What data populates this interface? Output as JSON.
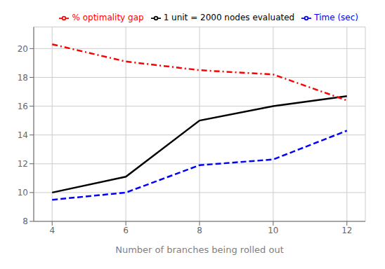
{
  "chart_data": {
    "type": "line",
    "x": [
      4,
      6,
      8,
      10,
      12
    ],
    "series": [
      {
        "name": "1 unit = 2000 nodes evaluated",
        "color": "#000000",
        "line_style": "solid",
        "values": [
          10.0,
          11.1,
          15.0,
          16.0,
          16.7
        ]
      },
      {
        "name": "% optimality gap",
        "color": "#ff0000",
        "line_style": "dashdot",
        "values": [
          20.3,
          19.1,
          18.5,
          18.2,
          16.4
        ]
      },
      {
        "name": "Time (sec)",
        "color": "#0000ff",
        "line_style": "dashed",
        "values": [
          9.5,
          10.0,
          11.9,
          12.3,
          14.3
        ]
      }
    ],
    "xlabel": "Number of branches being rolled out",
    "xlim": [
      3.5,
      12.5
    ],
    "xticks": [
      4,
      6,
      8,
      10,
      12
    ],
    "ylim": [
      8,
      21.5
    ],
    "yticks": [
      8,
      10,
      12,
      14,
      16,
      18,
      20
    ],
    "grid": true,
    "legend": "upper right"
  }
}
